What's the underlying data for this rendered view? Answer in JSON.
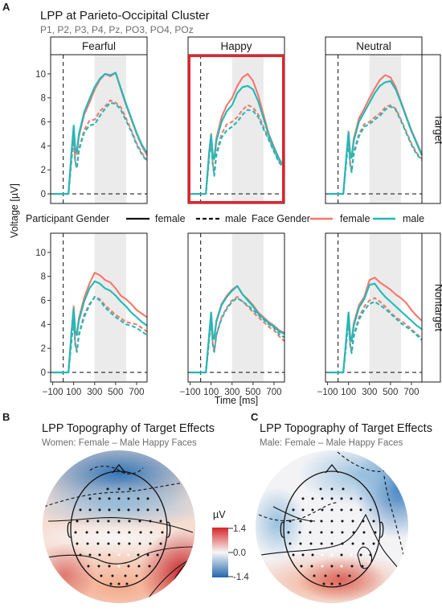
{
  "chart_data": [
    {
      "type": "line",
      "panel_label": "A",
      "title": "LPP at Parieto-Occipital Cluster",
      "subtitle": "P1, P2, P3, P4, Pz, PO3, PO4, POz",
      "columns": [
        "Fearful",
        "Happy",
        "Neutral"
      ],
      "rows": [
        "Target",
        "Nontarget"
      ],
      "highlighted_panel": {
        "row": "Target",
        "column": "Happy"
      },
      "xlabel": "Time [ms]",
      "ylabel": "Voltage [µV]",
      "xlim": [
        -120,
        800
      ],
      "ylim": [
        -0.8,
        11.6
      ],
      "xticks": [
        -100,
        100,
        300,
        500,
        700
      ],
      "xtick_labels": [
        "−100",
        "100",
        "300",
        "500",
        "700"
      ],
      "yticks": [
        0,
        2,
        4,
        6,
        8,
        10
      ],
      "shaded_window": [
        300,
        600
      ],
      "vline_x": 0,
      "hline_y": 0,
      "legend": {
        "position": "between rows",
        "participant_title": "Participant Gender",
        "participant_items": [
          {
            "label": "female",
            "linetype": "solid"
          },
          {
            "label": "male",
            "linetype": "dashed"
          }
        ],
        "face_title": "Face Gender",
        "face_items": [
          {
            "label": "female",
            "color": "#F8766D"
          },
          {
            "label": "male",
            "color": "#1FBAB8"
          }
        ]
      },
      "x": [
        -100,
        0,
        20,
        50,
        80,
        100,
        115,
        130,
        150,
        200,
        250,
        300,
        350,
        400,
        450,
        500,
        550,
        600,
        650,
        700,
        750,
        800
      ],
      "panels": [
        {
          "row": "Target",
          "column": "Fearful",
          "series": [
            {
              "face": "female",
              "participant": "female",
              "values": [
                0,
                0,
                0,
                0,
                3.5,
                5.5,
                3.6,
                3.3,
                4.8,
                6.6,
                7.6,
                8.7,
                9.5,
                10.0,
                9.8,
                10.1,
                8.7,
                7.4,
                6.2,
                5.0,
                4.0,
                3.2
              ]
            },
            {
              "face": "male",
              "participant": "female",
              "values": [
                0,
                0,
                0,
                0,
                3.6,
                5.7,
                3.8,
                3.5,
                5.0,
                6.8,
                7.9,
                8.9,
                9.6,
                10.0,
                9.9,
                10.1,
                8.8,
                7.5,
                6.3,
                5.1,
                4.1,
                3.4
              ]
            },
            {
              "face": "female",
              "participant": "male",
              "values": [
                0,
                0,
                0,
                0,
                2.9,
                4.6,
                2.6,
                2.1,
                3.7,
                5.3,
                6.1,
                6.2,
                6.9,
                7.3,
                7.8,
                7.6,
                7.2,
                6.3,
                5.3,
                4.2,
                3.4,
                2.8
              ]
            },
            {
              "face": "male",
              "participant": "male",
              "values": [
                0,
                0,
                0,
                0,
                3.0,
                4.7,
                2.7,
                2.2,
                3.6,
                5.1,
                5.7,
                5.8,
                6.5,
                7.1,
                7.6,
                7.5,
                7.0,
                6.1,
                5.2,
                4.1,
                3.3,
                2.7
              ]
            }
          ]
        },
        {
          "row": "Target",
          "column": "Happy",
          "series": [
            {
              "face": "female",
              "participant": "female",
              "values": [
                0,
                0,
                0,
                0,
                3.4,
                5.0,
                3.3,
                3.0,
                4.6,
                6.4,
                7.4,
                8.0,
                9.0,
                9.7,
                10.0,
                9.4,
                8.2,
                6.6,
                5.0,
                3.9,
                2.9,
                2.1
              ]
            },
            {
              "face": "male",
              "participant": "female",
              "values": [
                0,
                0,
                0,
                0,
                3.3,
                4.9,
                3.2,
                2.9,
                4.4,
                6.0,
                6.9,
                7.4,
                8.4,
                8.9,
                9.0,
                8.7,
                7.7,
                6.3,
                4.9,
                3.8,
                2.9,
                2.2
              ]
            },
            {
              "face": "female",
              "participant": "male",
              "values": [
                0,
                0,
                0,
                0,
                3.0,
                4.5,
                2.6,
                1.6,
                3.4,
                5.0,
                5.8,
                6.0,
                6.4,
                7.0,
                7.4,
                7.2,
                6.6,
                5.6,
                4.6,
                3.6,
                2.7,
                2.2
              ]
            },
            {
              "face": "male",
              "participant": "male",
              "values": [
                0,
                0,
                0,
                0,
                3.0,
                4.4,
                2.5,
                1.5,
                3.2,
                4.7,
                5.3,
                5.6,
                6.0,
                6.6,
                7.0,
                6.9,
                6.4,
                5.4,
                4.5,
                3.5,
                2.6,
                2.1
              ]
            }
          ]
        },
        {
          "row": "Target",
          "column": "Neutral",
          "series": [
            {
              "face": "female",
              "participant": "female",
              "values": [
                0,
                0,
                0,
                0,
                3.2,
                5.2,
                3.4,
                3.1,
                4.6,
                6.3,
                7.1,
                8.0,
                8.8,
                9.5,
                9.9,
                9.7,
                8.9,
                7.7,
                6.5,
                5.3,
                4.3,
                3.3
              ]
            },
            {
              "face": "male",
              "participant": "female",
              "values": [
                0,
                0,
                0,
                0,
                3.2,
                5.1,
                3.3,
                3.0,
                4.4,
                6.0,
                6.8,
                7.6,
                8.4,
                9.0,
                9.3,
                9.4,
                8.7,
                7.6,
                6.4,
                5.2,
                4.2,
                3.2
              ]
            },
            {
              "face": "female",
              "participant": "male",
              "values": [
                0,
                0,
                0,
                0,
                2.9,
                4.5,
                2.6,
                1.9,
                3.5,
                5.0,
                5.8,
                6.0,
                6.4,
                6.7,
                7.2,
                7.4,
                7.1,
                6.2,
                5.2,
                4.2,
                3.4,
                2.9
              ]
            },
            {
              "face": "male",
              "participant": "male",
              "values": [
                0,
                0,
                0,
                0,
                2.8,
                4.4,
                2.5,
                1.8,
                3.3,
                4.8,
                5.6,
                5.8,
                6.2,
                6.5,
                7.0,
                7.3,
                7.0,
                6.1,
                5.1,
                4.1,
                3.3,
                2.8
              ]
            }
          ]
        },
        {
          "row": "Nontarget",
          "column": "Fearful",
          "series": [
            {
              "face": "female",
              "participant": "female",
              "values": [
                0,
                0,
                0,
                0,
                3.5,
                5.5,
                3.4,
                3.2,
                4.5,
                6.2,
                7.4,
                8.3,
                8.1,
                7.7,
                7.5,
                7.0,
                6.4,
                6.1,
                5.7,
                5.2,
                4.9,
                4.6
              ]
            },
            {
              "face": "male",
              "participant": "female",
              "values": [
                0,
                0,
                0,
                0,
                3.4,
                5.3,
                3.3,
                3.1,
                4.3,
                5.9,
                7.0,
                7.6,
                7.4,
                7.0,
                6.8,
                6.4,
                5.9,
                5.5,
                5.0,
                4.6,
                4.2,
                3.9
              ]
            },
            {
              "face": "female",
              "participant": "male",
              "values": [
                0,
                0,
                0,
                0,
                2.8,
                4.4,
                2.4,
                1.8,
                3.2,
                4.8,
                5.7,
                6.3,
                6.1,
                5.6,
                5.2,
                4.8,
                4.5,
                4.2,
                4.1,
                4.0,
                3.7,
                3.4
              ]
            },
            {
              "face": "male",
              "participant": "male",
              "values": [
                0,
                0,
                0,
                0,
                2.7,
                4.3,
                2.3,
                1.7,
                3.1,
                4.6,
                5.6,
                6.3,
                6.0,
                5.4,
                5.0,
                4.6,
                4.3,
                4.0,
                3.9,
                3.7,
                3.4,
                3.1
              ]
            }
          ]
        },
        {
          "row": "Nontarget",
          "column": "Happy",
          "series": [
            {
              "face": "female",
              "participant": "female",
              "values": [
                0,
                0,
                0,
                0,
                3.0,
                5.0,
                3.1,
                2.8,
                4.3,
                5.7,
                6.4,
                6.9,
                7.2,
                6.5,
                6.1,
                5.6,
                5.0,
                4.6,
                4.2,
                3.9,
                3.5,
                3.3
              ]
            },
            {
              "face": "male",
              "participant": "female",
              "values": [
                0,
                0,
                0,
                0,
                3.0,
                5.0,
                3.1,
                2.8,
                4.2,
                5.6,
                6.3,
                6.8,
                7.2,
                6.5,
                6.0,
                5.5,
                4.9,
                4.5,
                4.1,
                3.8,
                3.4,
                3.2
              ]
            },
            {
              "face": "female",
              "participant": "male",
              "values": [
                0,
                0,
                0,
                0,
                2.6,
                4.4,
                2.4,
                1.7,
                3.1,
                4.6,
                5.4,
                6.0,
                6.3,
                5.9,
                5.5,
                5.0,
                4.6,
                4.2,
                3.8,
                3.5,
                3.0,
                2.6
              ]
            },
            {
              "face": "male",
              "participant": "male",
              "values": [
                0,
                0,
                0,
                0,
                2.6,
                4.3,
                2.4,
                1.7,
                3.1,
                4.5,
                5.3,
                5.9,
                6.2,
                5.9,
                5.6,
                5.2,
                4.8,
                4.4,
                4.0,
                3.7,
                3.2,
                2.9
              ]
            }
          ]
        },
        {
          "row": "Nontarget",
          "column": "Neutral",
          "series": [
            {
              "face": "female",
              "participant": "female",
              "values": [
                0,
                0,
                0,
                0,
                3.0,
                5.0,
                3.0,
                2.7,
                4.1,
                5.6,
                6.3,
                7.7,
                7.9,
                7.5,
                7.2,
                6.9,
                6.5,
                6.2,
                5.8,
                5.2,
                4.7,
                4.3
              ]
            },
            {
              "face": "male",
              "participant": "female",
              "values": [
                0,
                0,
                0,
                0,
                3.0,
                5.0,
                3.0,
                2.6,
                3.9,
                5.4,
                6.1,
                7.3,
                7.4,
                6.8,
                6.3,
                5.9,
                5.5,
                5.1,
                4.7,
                4.3,
                3.9,
                3.6
              ]
            },
            {
              "face": "female",
              "participant": "male",
              "values": [
                0,
                0,
                0,
                0,
                2.6,
                4.4,
                2.3,
                1.7,
                3.1,
                4.6,
                5.5,
                6.0,
                6.2,
                5.9,
                5.5,
                5.0,
                4.6,
                4.3,
                4.0,
                3.6,
                3.2,
                2.8
              ]
            },
            {
              "face": "male",
              "participant": "male",
              "values": [
                0,
                0,
                0,
                0,
                2.6,
                4.3,
                2.3,
                1.6,
                3.0,
                4.4,
                5.2,
                5.7,
                5.9,
                5.6,
                5.3,
                4.9,
                4.5,
                4.1,
                3.8,
                3.5,
                3.1,
                2.7
              ]
            }
          ]
        }
      ]
    },
    {
      "type": "heatmap",
      "panel_label": "B",
      "title": "LPP Topography of Target Effects",
      "subtitle": "Women: Female – Male Happy Faces",
      "colorbar": {
        "title": "µV",
        "min": -1.4,
        "max": 1.4,
        "ticks": [
          1.4,
          0.0,
          -1.4
        ],
        "tick_labels": [
          "1.4",
          "0.0",
          "-1.4"
        ],
        "low_color": "#2166AC",
        "mid_color": "#F7F7F7",
        "high_color": "#D6262A"
      }
    },
    {
      "type": "heatmap",
      "panel_label": "C",
      "title": "LPP Topography of Target Effects",
      "subtitle": "Male: Female – Male Happy Faces",
      "colorbar": {
        "shared_with": "B"
      }
    }
  ]
}
